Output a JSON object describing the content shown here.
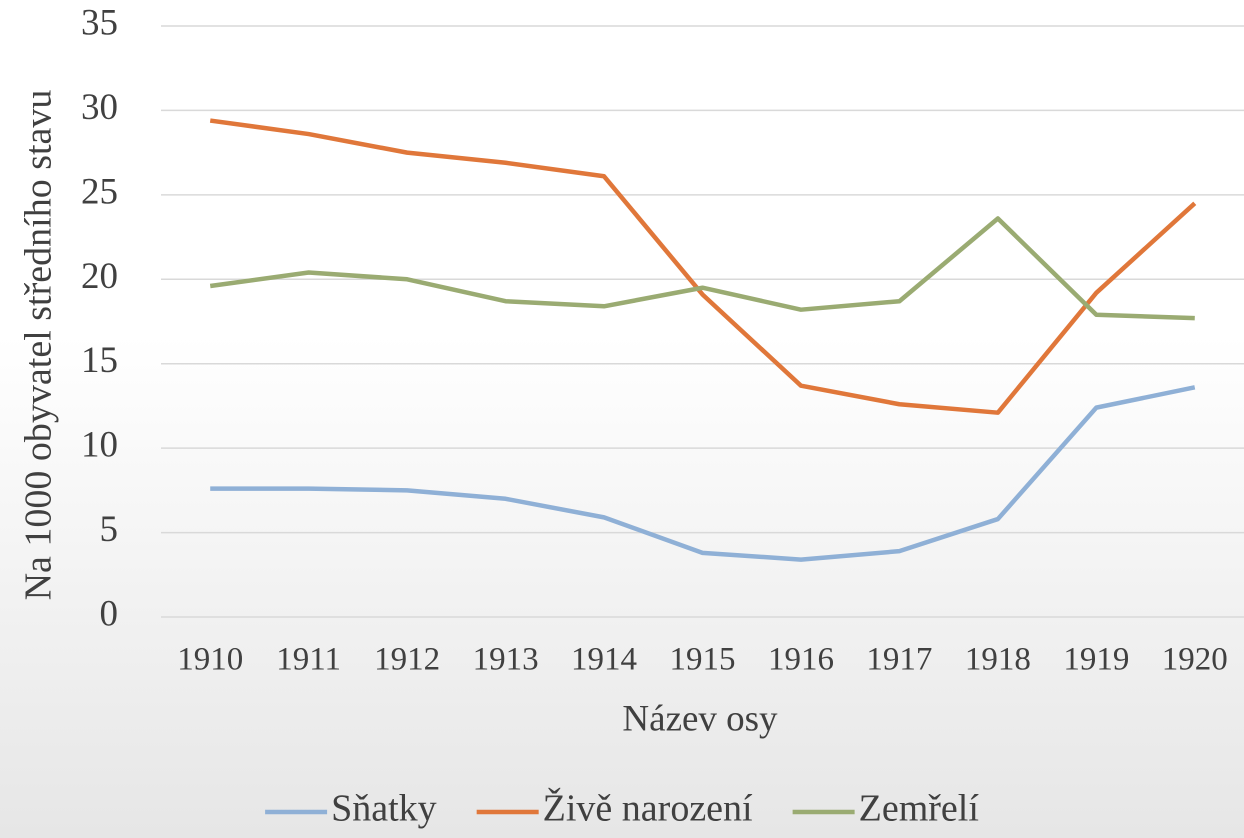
{
  "chart_data": {
    "type": "line",
    "x_label": "Název osy",
    "y_label": "Na 1000 obyvatel středního stavu",
    "categories": [
      "1910",
      "1911",
      "1912",
      "1913",
      "1914",
      "1915",
      "1916",
      "1917",
      "1918",
      "1919",
      "1920"
    ],
    "series": [
      {
        "name": "Sňatky",
        "color": "#8fb0d6",
        "values": [
          7.6,
          7.6,
          7.5,
          7.0,
          5.9,
          3.8,
          3.4,
          3.9,
          5.8,
          12.4,
          13.6
        ]
      },
      {
        "name": "Živě narození",
        "color": "#e0773a",
        "values": [
          29.4,
          28.6,
          27.5,
          26.9,
          26.1,
          19.1,
          13.7,
          12.6,
          12.1,
          19.2,
          24.5
        ]
      },
      {
        "name": "Zemřelí",
        "color": "#9aab72",
        "values": [
          19.6,
          20.4,
          20.0,
          18.7,
          18.4,
          19.5,
          18.2,
          18.7,
          23.6,
          17.9,
          17.7
        ]
      }
    ],
    "ylim": [
      0,
      35
    ],
    "yticks": [
      0,
      5,
      10,
      15,
      20,
      25,
      30,
      35
    ],
    "grid": true,
    "legend": "bottom"
  }
}
